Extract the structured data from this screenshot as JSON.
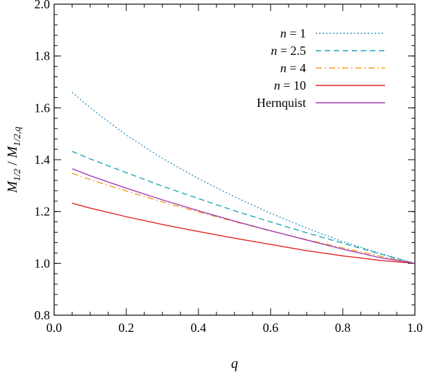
{
  "chart_data": {
    "type": "line",
    "xlabel": "q",
    "ylabel_parts": {
      "m1": "M",
      "s1": "1/2",
      "sep": " / ",
      "m2": "M",
      "s2": "1/2,q"
    },
    "xlim": [
      0.0,
      1.0
    ],
    "ylim": [
      0.8,
      2.0
    ],
    "x_ticks": [
      "0.0",
      "0.2",
      "0.4",
      "0.6",
      "0.8",
      "1.0"
    ],
    "y_ticks": [
      "0.8",
      "1.0",
      "1.2",
      "1.4",
      "1.6",
      "1.8",
      "2.0"
    ],
    "grid": false,
    "legend_position": "top-right",
    "series": [
      {
        "label_var": "n",
        "label_rest": " = 1",
        "color": "#2a8fc0",
        "style": "dotted",
        "x": [
          0.05,
          0.1,
          0.2,
          0.3,
          0.4,
          0.5,
          0.6,
          0.7,
          0.8,
          0.9,
          1.0
        ],
        "y": [
          1.66,
          1.6,
          1.495,
          1.405,
          1.327,
          1.257,
          1.193,
          1.136,
          1.084,
          1.04,
          1.0
        ]
      },
      {
        "label_var": "n",
        "label_rest": " = 2.5",
        "color": "#1aa6b3",
        "style": "dashed",
        "x": [
          0.05,
          0.1,
          0.2,
          0.3,
          0.4,
          0.5,
          0.6,
          0.7,
          0.8,
          0.9,
          1.0
        ],
        "y": [
          1.432,
          1.403,
          1.35,
          1.298,
          1.25,
          1.203,
          1.16,
          1.118,
          1.078,
          1.038,
          1.0
        ]
      },
      {
        "label_var": "n",
        "label_rest": " = 4",
        "color": "#f0a020",
        "style": "dashdot",
        "x": [
          0.05,
          0.1,
          0.2,
          0.3,
          0.4,
          0.5,
          0.6,
          0.7,
          0.8,
          0.9,
          1.0
        ],
        "y": [
          1.348,
          1.323,
          1.279,
          1.237,
          1.198,
          1.161,
          1.125,
          1.092,
          1.06,
          1.029,
          1.0
        ]
      },
      {
        "label_var": "n",
        "label_rest": " = 10",
        "color": "#e32020",
        "style": "solid",
        "x": [
          0.05,
          0.1,
          0.2,
          0.3,
          0.4,
          0.5,
          0.6,
          0.7,
          0.8,
          0.9,
          1.0
        ],
        "y": [
          1.232,
          1.213,
          1.18,
          1.15,
          1.123,
          1.097,
          1.073,
          1.049,
          1.029,
          1.012,
          1.0
        ]
      },
      {
        "label_var": "",
        "label_rest": "Hernquist",
        "color": "#a23ab3",
        "style": "solid",
        "x": [
          0.05,
          0.1,
          0.2,
          0.3,
          0.4,
          0.5,
          0.6,
          0.7,
          0.8,
          0.9,
          1.0
        ],
        "y": [
          1.365,
          1.338,
          1.29,
          1.245,
          1.203,
          1.163,
          1.126,
          1.09,
          1.055,
          1.023,
          1.0
        ]
      }
    ]
  }
}
